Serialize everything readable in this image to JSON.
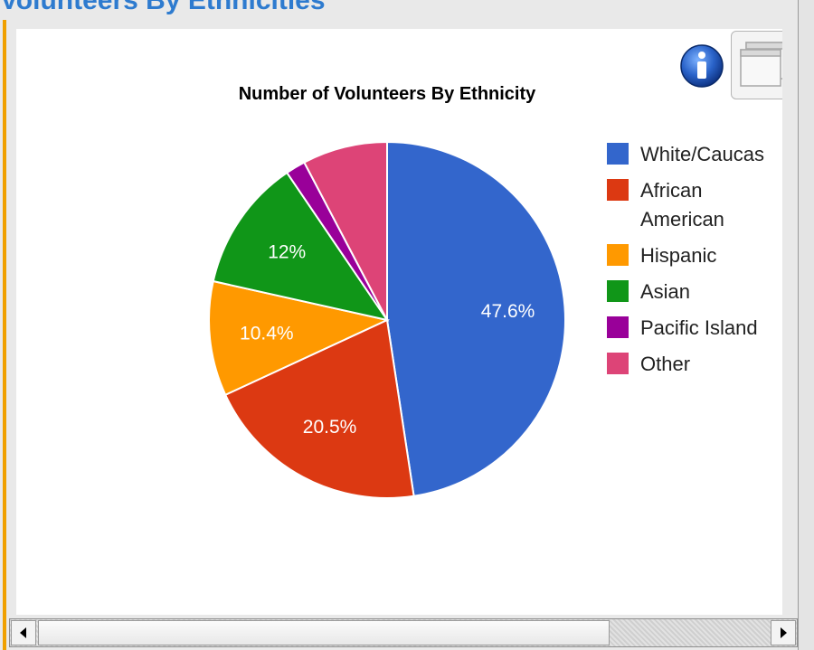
{
  "page": {
    "heading": "Volunteers By Ethnicities"
  },
  "icons": {
    "info": "info-icon",
    "window": "window-icon",
    "scroll_left": "arrow-left-icon",
    "scroll_right": "arrow-right-icon"
  },
  "chart_data": {
    "type": "pie",
    "title": "Number of Volunteers By Ethnicity",
    "legend_position": "right",
    "slices": [
      {
        "name": "White/Caucasian",
        "legend_text": [
          "White/Caucas"
        ],
        "value": 47.6,
        "label": "47.6%",
        "color": "#3366cc"
      },
      {
        "name": "African American",
        "legend_text": [
          "African",
          "American"
        ],
        "value": 20.5,
        "label": "20.5%",
        "color": "#dc3912"
      },
      {
        "name": "Hispanic",
        "legend_text": [
          "Hispanic"
        ],
        "value": 10.4,
        "label": "10.4%",
        "color": "#ff9900"
      },
      {
        "name": "Asian",
        "legend_text": [
          "Asian"
        ],
        "value": 12.0,
        "label": "12%",
        "color": "#109618"
      },
      {
        "name": "Pacific Islander",
        "legend_text": [
          "Pacific Island"
        ],
        "value": 1.8,
        "label": "",
        "color": "#990099"
      },
      {
        "name": "Other",
        "legend_text": [
          "Other"
        ],
        "value": 7.7,
        "label": "",
        "color": "#dd4477"
      }
    ]
  }
}
